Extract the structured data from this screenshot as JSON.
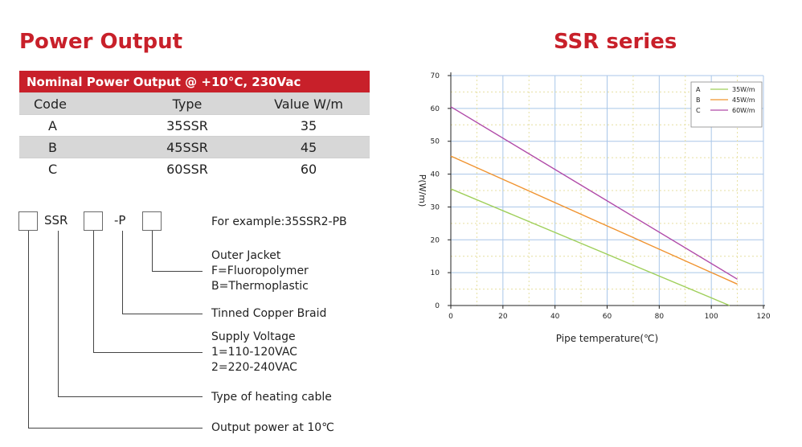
{
  "left": {
    "title": "Power Output",
    "table": {
      "banner": "Nominal Power Output @ +10°C, 230Vac",
      "headers": [
        "Code",
        "Type",
        "Value W/m"
      ],
      "rows": [
        [
          "A",
          "35SSR",
          "35"
        ],
        [
          "B",
          "45SSR",
          "45"
        ],
        [
          "C",
          "60SSR",
          "60"
        ]
      ]
    },
    "code_builder": {
      "part_ssr": "SSR",
      "part_p": "-P",
      "example": "For example:35SSR2-PB",
      "outer_jacket": [
        "Outer Jacket",
        "F=Fluoropolymer",
        "B=Thermoplastic"
      ],
      "braid": "Tinned Copper Braid",
      "voltage": [
        "Supply Voltage",
        "1=110-120VAC",
        "2=220-240VAC"
      ],
      "cable_type": "Type of heating cable",
      "output": "Output power at 10℃"
    }
  },
  "right": {
    "title": "SSR series"
  },
  "chart_data": {
    "type": "line",
    "xlabel": "Pipe temperature(℃)",
    "ylabel": "P(W/m)",
    "xlim": [
      0,
      120
    ],
    "ylim": [
      0,
      70
    ],
    "x_ticks": [
      "0",
      "20",
      "40",
      "60",
      "80",
      "100",
      "120"
    ],
    "y_ticks": [
      "0",
      "10",
      "20",
      "30",
      "40",
      "50",
      "60",
      "70"
    ],
    "grid": true,
    "legend_position": "top-right",
    "series": [
      {
        "code": "A",
        "name": "35W/m",
        "color": "#9fcf5a",
        "x": [
          0,
          107
        ],
        "y": [
          35.5,
          0
        ]
      },
      {
        "code": "B",
        "name": "45W/m",
        "color": "#f0932f",
        "x": [
          0,
          110
        ],
        "y": [
          45.5,
          6.5
        ]
      },
      {
        "code": "C",
        "name": "60W/m",
        "color": "#b04aa8",
        "x": [
          0,
          110
        ],
        "y": [
          60.5,
          8
        ]
      }
    ]
  }
}
